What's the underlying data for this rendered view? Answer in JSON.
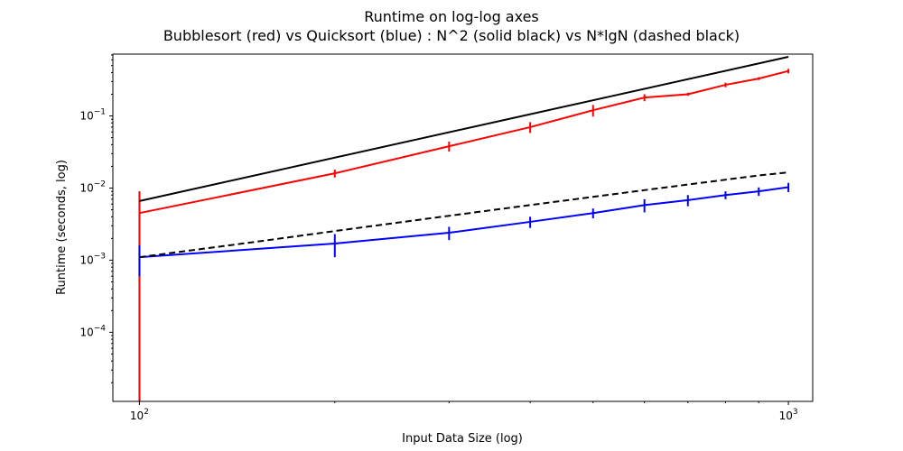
{
  "chart_data": {
    "type": "line",
    "title_line1": "Runtime on log-log axes",
    "title_line2": "Bubblesort (red) vs Quicksort (blue) : N^2 (solid black) vs N*lgN (dashed black)",
    "xlabel": "Input Data Size (log)",
    "ylabel": "Runtime (seconds, log)",
    "xscale": "log",
    "yscale": "log",
    "xlim": [
      91,
      1090
    ],
    "ylim": [
      1.1e-05,
      0.72
    ],
    "grid": false,
    "x_ticks": [
      {
        "value": 100,
        "base": "10",
        "exp": "2"
      },
      {
        "value": 1000,
        "base": "10",
        "exp": "3"
      }
    ],
    "y_ticks": [
      {
        "value": 0.0001,
        "base": "10",
        "exp": "−4"
      },
      {
        "value": 0.001,
        "base": "10",
        "exp": "−3"
      },
      {
        "value": 0.01,
        "base": "10",
        "exp": "−2"
      },
      {
        "value": 0.1,
        "base": "10",
        "exp": "−1"
      }
    ],
    "series": [
      {
        "color": "#ff0000",
        "style": "solid",
        "x": [
          100,
          200,
          300,
          400,
          500,
          600,
          700,
          800,
          900,
          1000
        ],
        "y": [
          0.0045,
          0.016,
          0.038,
          0.07,
          0.12,
          0.18,
          0.2,
          0.27,
          0.33,
          0.42
        ],
        "yerr": [
          0.0045,
          0.002,
          0.006,
          0.012,
          0.022,
          0.02,
          0.01,
          0.02,
          0.015,
          0.03
        ]
      },
      {
        "color": "#0000ff",
        "style": "solid",
        "x": [
          100,
          200,
          300,
          400,
          500,
          600,
          700,
          800,
          900,
          1000
        ],
        "y": [
          0.0011,
          0.0017,
          0.0024,
          0.0034,
          0.0045,
          0.0058,
          0.0068,
          0.008,
          0.009,
          0.0103
        ],
        "yerr": [
          0.0005,
          0.0006,
          0.0005,
          0.0006,
          0.0007,
          0.0012,
          0.0012,
          0.001,
          0.0012,
          0.0015
        ]
      },
      {
        "color": "#000000",
        "style": "solid",
        "x": [
          100,
          1000
        ],
        "y": [
          0.0066,
          0.66
        ]
      },
      {
        "color": "#000000",
        "style": "dashed",
        "x": [
          100,
          150,
          200,
          300,
          400,
          500,
          600,
          700,
          800,
          900,
          1000
        ],
        "y": [
          0.0011,
          0.001781,
          0.002534,
          0.004124,
          0.005806,
          0.007553,
          0.00935,
          0.01119,
          0.013061,
          0.014965,
          0.0165
        ]
      }
    ]
  }
}
